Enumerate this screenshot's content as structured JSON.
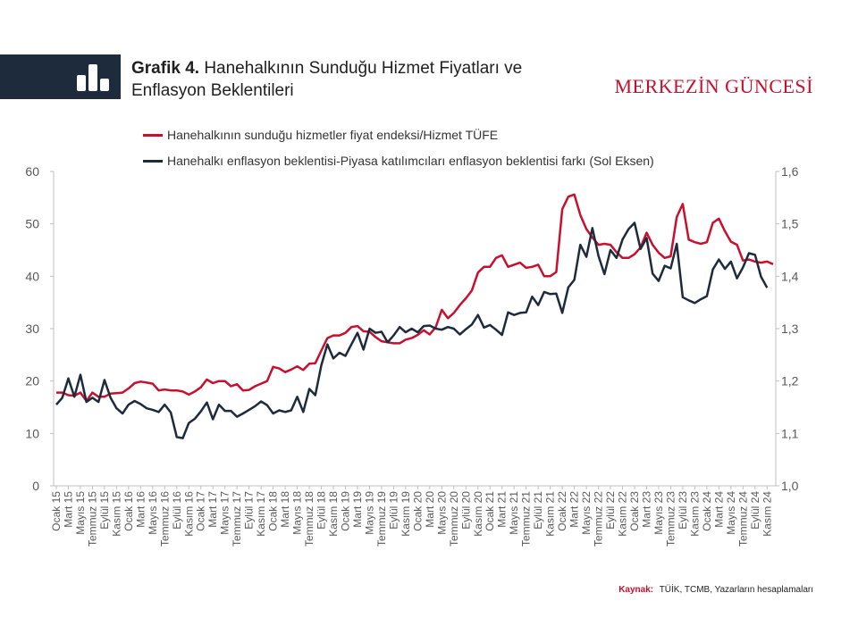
{
  "header": {
    "title_bold": "Grafik 4.",
    "title_rest": "Hanehalkının Sunduğu Hizmet Fiyatları ve Enflasyon Beklentileri",
    "brand": "MERKEZİN GÜNCESİ"
  },
  "source": {
    "label": "Kaynak:",
    "text": "TÜİK, TCMB, Yazarların hesaplamaları"
  },
  "colors": {
    "banner": "#1d2b3d",
    "red": "#c8102e",
    "navy": "#1d2b3d",
    "brand": "#c8102e"
  },
  "chart_data": {
    "type": "line",
    "legend": [
      "Hanehalkının sunduğu hizmetler fiyat endeksi/Hizmet TÜFE",
      "Hanehalkı enflasyon beklentisi-Piyasa katılımcıları enflasyon beklentisi farkı (Sol Eksen)"
    ],
    "legend_position": "top",
    "left_axis": {
      "range": [
        0,
        60
      ],
      "ticks": [
        "0",
        "10",
        "20",
        "30",
        "40",
        "50",
        "60"
      ]
    },
    "right_axis": {
      "range": [
        1.0,
        1.6
      ],
      "ticks": [
        "1,0",
        "1,1",
        "1,2",
        "1,3",
        "1,4",
        "1,5",
        "1,6"
      ]
    },
    "x_ticks": [
      "Ocak 15",
      "Mart 15",
      "Mayıs 15",
      "Temmuz 15",
      "Eylül 15",
      "Kasım 15",
      "Ocak 16",
      "Mart 16",
      "Mayıs 16",
      "Temmuz 16",
      "Eylül 16",
      "Kasım 16",
      "Ocak 17",
      "Mart 17",
      "Mayıs 17",
      "Temmuz 17",
      "Eylül 17",
      "Kasım 17",
      "Ocak 18",
      "Mart 18",
      "Mayıs 18",
      "Temmuz 18",
      "Eylül 18",
      "Kasım 18",
      "Ocak 19",
      "Mart 19",
      "Mayıs 19",
      "Temmuz 19",
      "Eylül 19",
      "Kasım 19",
      "Ocak 20",
      "Mart 20",
      "Mayıs 20",
      "Temmuz 20",
      "Eylül 20",
      "Kasım 20",
      "Ocak 21",
      "Mart 21",
      "Mayıs 21",
      "Temmuz 21",
      "Eylül 21",
      "Kasım 21",
      "Ocak 22",
      "Mart 22",
      "Mayıs 22",
      "Temmuz 22",
      "Eylül 22",
      "Kasım 22",
      "Ocak 23",
      "Mart 23",
      "Mayıs 23",
      "Temmuz 23",
      "Eylül 23",
      "Kasım 23",
      "Ocak 24",
      "Mart 24",
      "Mayıs 24",
      "Temmuz 24",
      "Eylül 24",
      "Kasım 24"
    ],
    "grid": false,
    "series": [
      {
        "name": "Hanehalkının sunduğu hizmetler fiyat endeksi/Hizmet TÜFE",
        "axis": "right",
        "values": [
          1.178,
          1.178,
          1.173,
          1.172,
          1.178,
          1.162,
          1.178,
          1.17,
          1.17,
          1.176,
          1.177,
          1.178,
          1.186,
          1.196,
          1.199,
          1.197,
          1.195,
          1.182,
          1.184,
          1.182,
          1.182,
          1.18,
          1.174,
          1.18,
          1.188,
          1.203,
          1.196,
          1.2,
          1.2,
          1.19,
          1.194,
          1.182,
          1.183,
          1.19,
          1.195,
          1.2,
          1.227,
          1.224,
          1.217,
          1.222,
          1.228,
          1.221,
          1.233,
          1.234,
          1.258,
          1.282,
          1.287,
          1.287,
          1.292,
          1.303,
          1.305,
          1.295,
          1.294,
          1.284,
          1.276,
          1.274,
          1.272,
          1.272,
          1.279,
          1.282,
          1.288,
          1.297,
          1.289,
          1.303,
          1.336,
          1.32,
          1.33,
          1.345,
          1.358,
          1.373,
          1.407,
          1.418,
          1.418,
          1.435,
          1.44,
          1.418,
          1.422,
          1.426,
          1.416,
          1.418,
          1.422,
          1.4,
          1.4,
          1.408,
          1.528,
          1.552,
          1.556,
          1.517,
          1.49,
          1.474,
          1.46,
          1.462,
          1.46,
          1.446,
          1.435,
          1.435,
          1.442,
          1.455,
          1.483,
          1.46,
          1.445,
          1.435,
          1.438,
          1.513,
          1.538,
          1.47,
          1.465,
          1.462,
          1.465,
          1.502,
          1.51,
          1.486,
          1.466,
          1.46,
          1.43,
          1.432,
          1.428,
          1.426,
          1.428,
          1.423
        ]
      },
      {
        "name": "Hanehalkı enflasyon beklentisi-Piyasa katılımcıları enflasyon beklentisi farkı (Sol Eksen)",
        "axis": "left",
        "values": [
          15.5,
          16.8,
          20.5,
          17.0,
          21.2,
          16.0,
          16.8,
          16.0,
          20.2,
          16.8,
          14.8,
          13.8,
          15.5,
          16.2,
          15.6,
          14.8,
          14.5,
          14.1,
          15.5,
          14.0,
          9.3,
          9.1,
          12.0,
          12.8,
          14.2,
          15.9,
          12.7,
          15.5,
          14.3,
          14.3,
          13.2,
          13.8,
          14.5,
          15.2,
          16.1,
          15.4,
          13.8,
          14.4,
          14.1,
          14.4,
          17.0,
          14.1,
          18.5,
          17.3,
          23.0,
          27.0,
          24.3,
          25.4,
          24.8,
          27.0,
          29.2,
          26.0,
          30.0,
          29.2,
          29.4,
          27.4,
          28.7,
          30.3,
          29.3,
          30.0,
          29.3,
          30.5,
          30.6,
          30.0,
          29.8,
          30.3,
          30.0,
          28.9,
          29.9,
          30.8,
          32.6,
          30.2,
          30.7,
          29.8,
          28.8,
          33.1,
          32.6,
          33.0,
          33.1,
          36.1,
          34.5,
          37.0,
          36.6,
          36.7,
          33.0,
          37.9,
          39.3,
          46.0,
          43.7,
          49.2,
          43.9,
          40.4,
          45.0,
          43.5,
          47.0,
          49.0,
          50.2,
          45.2,
          47.3,
          40.5,
          39.1,
          42.0,
          41.5,
          46.2,
          36.0,
          35.4,
          34.9,
          35.6,
          36.2,
          41.3,
          43.2,
          41.4,
          42.8,
          39.6,
          41.7,
          44.4,
          44.1,
          39.9,
          37.8
        ]
      }
    ]
  }
}
